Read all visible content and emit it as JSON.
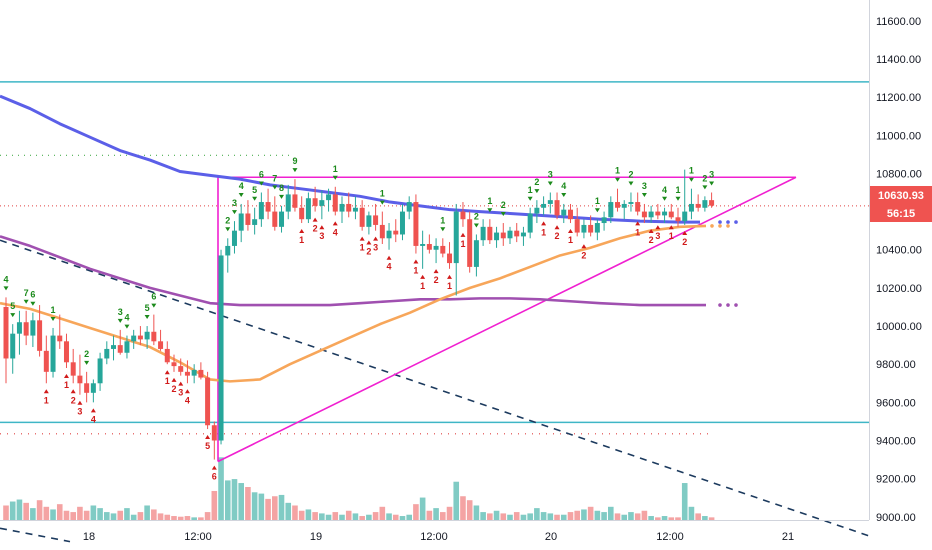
{
  "chart_data": {
    "type": "candlestick",
    "price_axis": {
      "ticks": [
        "11600.00",
        "11400.00",
        "11200.00",
        "11000.00",
        "10800.00",
        "10600.00",
        "10400.00",
        "10200.00",
        "10000.00",
        "9800.00",
        "9600.00",
        "9400.00",
        "9200.00",
        "9000.00"
      ],
      "range": [
        8870,
        11660
      ]
    },
    "time_axis": {
      "ticks": [
        "18",
        "12:00",
        "19",
        "12:00",
        "20",
        "12:00",
        "21"
      ]
    },
    "current_price_label": "10630.93",
    "countdown_label": "56:15",
    "colors": {
      "up": "#26a69a",
      "down": "#ef5350",
      "vol_up": "#80cbc4",
      "vol_down": "#f4a3a3",
      "ma_blue": "#5b5fe8",
      "ma_purple": "#a050b0",
      "ma_orange": "#f7a65a",
      "triangle": "#f020d0",
      "level_line": "#3fb6c6",
      "dashed_trend": "#1c3a5e",
      "price_marker": "#e04040"
    },
    "horizontal_levels": [
      11280,
      9495
    ],
    "candles": [
      {
        "o": 10100,
        "h": 10150,
        "l": 9700,
        "c": 9830
      },
      {
        "o": 9830,
        "h": 10010,
        "l": 9750,
        "c": 9960
      },
      {
        "o": 9960,
        "h": 10080,
        "l": 9850,
        "c": 10020
      },
      {
        "o": 10020,
        "h": 10080,
        "l": 9900,
        "c": 9950
      },
      {
        "o": 9950,
        "h": 10070,
        "l": 9890,
        "c": 10030
      },
      {
        "o": 10030,
        "h": 10110,
        "l": 9840,
        "c": 9870
      },
      {
        "o": 9870,
        "h": 9950,
        "l": 9700,
        "c": 9760
      },
      {
        "o": 9760,
        "h": 9990,
        "l": 9730,
        "c": 9950
      },
      {
        "o": 9950,
        "h": 10060,
        "l": 9880,
        "c": 9920
      },
      {
        "o": 9920,
        "h": 9960,
        "l": 9780,
        "c": 9810
      },
      {
        "o": 9810,
        "h": 9880,
        "l": 9700,
        "c": 9740
      },
      {
        "o": 9740,
        "h": 9850,
        "l": 9640,
        "c": 9700
      },
      {
        "o": 9700,
        "h": 9760,
        "l": 9600,
        "c": 9650
      },
      {
        "o": 9650,
        "h": 9720,
        "l": 9600,
        "c": 9700
      },
      {
        "o": 9700,
        "h": 9860,
        "l": 9660,
        "c": 9830
      },
      {
        "o": 9830,
        "h": 9920,
        "l": 9800,
        "c": 9880
      },
      {
        "o": 9880,
        "h": 9950,
        "l": 9820,
        "c": 9900
      },
      {
        "o": 9900,
        "h": 9980,
        "l": 9850,
        "c": 9860
      },
      {
        "o": 9860,
        "h": 9950,
        "l": 9830,
        "c": 9920
      },
      {
        "o": 9920,
        "h": 9980,
        "l": 9880,
        "c": 9950
      },
      {
        "o": 9950,
        "h": 10000,
        "l": 9900,
        "c": 9930
      },
      {
        "o": 9930,
        "h": 10000,
        "l": 9880,
        "c": 9970
      },
      {
        "o": 9970,
        "h": 10060,
        "l": 9900,
        "c": 9920
      },
      {
        "o": 9920,
        "h": 9980,
        "l": 9870,
        "c": 9880
      },
      {
        "o": 9880,
        "h": 9920,
        "l": 9800,
        "c": 9810
      },
      {
        "o": 9810,
        "h": 9850,
        "l": 9760,
        "c": 9790
      },
      {
        "o": 9790,
        "h": 9830,
        "l": 9740,
        "c": 9760
      },
      {
        "o": 9760,
        "h": 9820,
        "l": 9700,
        "c": 9740
      },
      {
        "o": 9740,
        "h": 9800,
        "l": 9700,
        "c": 9770
      },
      {
        "o": 9770,
        "h": 9810,
        "l": 9720,
        "c": 9730
      },
      {
        "o": 9730,
        "h": 9760,
        "l": 9460,
        "c": 9480
      },
      {
        "o": 9480,
        "h": 9500,
        "l": 9300,
        "c": 9400
      },
      {
        "o": 9400,
        "h": 10400,
        "l": 9380,
        "c": 10370
      },
      {
        "o": 10370,
        "h": 10460,
        "l": 10280,
        "c": 10420
      },
      {
        "o": 10420,
        "h": 10550,
        "l": 10380,
        "c": 10500
      },
      {
        "o": 10500,
        "h": 10640,
        "l": 10440,
        "c": 10590
      },
      {
        "o": 10590,
        "h": 10660,
        "l": 10500,
        "c": 10530
      },
      {
        "o": 10530,
        "h": 10620,
        "l": 10480,
        "c": 10560
      },
      {
        "o": 10560,
        "h": 10700,
        "l": 10520,
        "c": 10650
      },
      {
        "o": 10650,
        "h": 10720,
        "l": 10560,
        "c": 10600
      },
      {
        "o": 10600,
        "h": 10680,
        "l": 10500,
        "c": 10520
      },
      {
        "o": 10520,
        "h": 10630,
        "l": 10490,
        "c": 10600
      },
      {
        "o": 10600,
        "h": 10740,
        "l": 10560,
        "c": 10690
      },
      {
        "o": 10690,
        "h": 10770,
        "l": 10600,
        "c": 10620
      },
      {
        "o": 10620,
        "h": 10680,
        "l": 10540,
        "c": 10560
      },
      {
        "o": 10560,
        "h": 10700,
        "l": 10540,
        "c": 10670
      },
      {
        "o": 10670,
        "h": 10730,
        "l": 10600,
        "c": 10630
      },
      {
        "o": 10630,
        "h": 10710,
        "l": 10560,
        "c": 10660
      },
      {
        "o": 10660,
        "h": 10720,
        "l": 10600,
        "c": 10690
      },
      {
        "o": 10690,
        "h": 10730,
        "l": 10580,
        "c": 10600
      },
      {
        "o": 10600,
        "h": 10680,
        "l": 10540,
        "c": 10640
      },
      {
        "o": 10640,
        "h": 10700,
        "l": 10570,
        "c": 10600
      },
      {
        "o": 10600,
        "h": 10680,
        "l": 10560,
        "c": 10620
      },
      {
        "o": 10620,
        "h": 10660,
        "l": 10500,
        "c": 10520
      },
      {
        "o": 10520,
        "h": 10600,
        "l": 10480,
        "c": 10580
      },
      {
        "o": 10580,
        "h": 10640,
        "l": 10500,
        "c": 10530
      },
      {
        "o": 10530,
        "h": 10600,
        "l": 10430,
        "c": 10460
      },
      {
        "o": 10460,
        "h": 10540,
        "l": 10400,
        "c": 10500
      },
      {
        "o": 10500,
        "h": 10560,
        "l": 10440,
        "c": 10480
      },
      {
        "o": 10480,
        "h": 10640,
        "l": 10450,
        "c": 10600
      },
      {
        "o": 10600,
        "h": 10680,
        "l": 10560,
        "c": 10650
      },
      {
        "o": 10650,
        "h": 10690,
        "l": 10380,
        "c": 10420
      },
      {
        "o": 10420,
        "h": 10500,
        "l": 10300,
        "c": 10430
      },
      {
        "o": 10430,
        "h": 10480,
        "l": 10380,
        "c": 10400
      },
      {
        "o": 10400,
        "h": 10460,
        "l": 10330,
        "c": 10420
      },
      {
        "o": 10420,
        "h": 10460,
        "l": 10360,
        "c": 10380
      },
      {
        "o": 10380,
        "h": 10440,
        "l": 10300,
        "c": 10330
      },
      {
        "o": 10330,
        "h": 10640,
        "l": 10160,
        "c": 10600
      },
      {
        "o": 10600,
        "h": 10650,
        "l": 10520,
        "c": 10560
      },
      {
        "o": 10560,
        "h": 10600,
        "l": 10280,
        "c": 10310
      },
      {
        "o": 10310,
        "h": 10480,
        "l": 10260,
        "c": 10450
      },
      {
        "o": 10450,
        "h": 10560,
        "l": 10420,
        "c": 10520
      },
      {
        "o": 10520,
        "h": 10560,
        "l": 10430,
        "c": 10450
      },
      {
        "o": 10450,
        "h": 10520,
        "l": 10410,
        "c": 10490
      },
      {
        "o": 10490,
        "h": 10540,
        "l": 10420,
        "c": 10460
      },
      {
        "o": 10460,
        "h": 10520,
        "l": 10430,
        "c": 10500
      },
      {
        "o": 10500,
        "h": 10540,
        "l": 10440,
        "c": 10470
      },
      {
        "o": 10470,
        "h": 10520,
        "l": 10420,
        "c": 10490
      },
      {
        "o": 10490,
        "h": 10620,
        "l": 10460,
        "c": 10590
      },
      {
        "o": 10590,
        "h": 10660,
        "l": 10540,
        "c": 10620
      },
      {
        "o": 10620,
        "h": 10680,
        "l": 10580,
        "c": 10640
      },
      {
        "o": 10640,
        "h": 10700,
        "l": 10590,
        "c": 10660
      },
      {
        "o": 10660,
        "h": 10700,
        "l": 10560,
        "c": 10580
      },
      {
        "o": 10580,
        "h": 10640,
        "l": 10540,
        "c": 10610
      },
      {
        "o": 10610,
        "h": 10640,
        "l": 10540,
        "c": 10560
      },
      {
        "o": 10560,
        "h": 10620,
        "l": 10470,
        "c": 10490
      },
      {
        "o": 10490,
        "h": 10560,
        "l": 10460,
        "c": 10530
      },
      {
        "o": 10530,
        "h": 10580,
        "l": 10470,
        "c": 10490
      },
      {
        "o": 10490,
        "h": 10560,
        "l": 10450,
        "c": 10540
      },
      {
        "o": 10540,
        "h": 10600,
        "l": 10500,
        "c": 10570
      },
      {
        "o": 10570,
        "h": 10680,
        "l": 10540,
        "c": 10650
      },
      {
        "o": 10650,
        "h": 10720,
        "l": 10600,
        "c": 10620
      },
      {
        "o": 10620,
        "h": 10660,
        "l": 10560,
        "c": 10640
      },
      {
        "o": 10640,
        "h": 10700,
        "l": 10600,
        "c": 10650
      },
      {
        "o": 10650,
        "h": 10700,
        "l": 10580,
        "c": 10600
      },
      {
        "o": 10600,
        "h": 10640,
        "l": 10540,
        "c": 10570
      },
      {
        "o": 10570,
        "h": 10630,
        "l": 10540,
        "c": 10600
      },
      {
        "o": 10600,
        "h": 10640,
        "l": 10560,
        "c": 10580
      },
      {
        "o": 10580,
        "h": 10620,
        "l": 10540,
        "c": 10600
      },
      {
        "o": 10600,
        "h": 10640,
        "l": 10560,
        "c": 10570
      },
      {
        "o": 10570,
        "h": 10620,
        "l": 10520,
        "c": 10550
      },
      {
        "o": 10550,
        "h": 10820,
        "l": 10530,
        "c": 10600
      },
      {
        "o": 10600,
        "h": 10720,
        "l": 10560,
        "c": 10640
      },
      {
        "o": 10640,
        "h": 10690,
        "l": 10600,
        "c": 10620
      },
      {
        "o": 10620,
        "h": 10680,
        "l": 10600,
        "c": 10660
      },
      {
        "o": 10660,
        "h": 10700,
        "l": 10620,
        "c": 10631
      }
    ],
    "volumes": [
      0.22,
      0.28,
      0.31,
      0.26,
      0.18,
      0.3,
      0.2,
      0.16,
      0.24,
      0.14,
      0.12,
      0.2,
      0.14,
      0.22,
      0.18,
      0.12,
      0.1,
      0.14,
      0.18,
      0.08,
      0.12,
      0.22,
      0.16,
      0.1,
      0.08,
      0.06,
      0.05,
      0.06,
      0.04,
      0.04,
      0.12,
      0.44,
      0.95,
      0.6,
      0.62,
      0.56,
      0.5,
      0.42,
      0.4,
      0.32,
      0.36,
      0.38,
      0.26,
      0.22,
      0.14,
      0.16,
      0.12,
      0.1,
      0.08,
      0.12,
      0.08,
      0.14,
      0.1,
      0.06,
      0.08,
      0.12,
      0.2,
      0.1,
      0.08,
      0.06,
      0.08,
      0.24,
      0.34,
      0.14,
      0.18,
      0.12,
      0.2,
      0.58,
      0.36,
      0.3,
      0.22,
      0.12,
      0.1,
      0.14,
      0.1,
      0.08,
      0.12,
      0.08,
      0.1,
      0.18,
      0.12,
      0.1,
      0.08,
      0.08,
      0.12,
      0.14,
      0.16,
      0.2,
      0.14,
      0.12,
      0.2,
      0.1,
      0.08,
      0.12,
      0.1,
      0.14,
      0.06,
      0.04,
      0.06,
      0.04,
      0.04,
      0.56,
      0.2,
      0.1,
      0.06,
      0.04
    ],
    "ma_blue": [
      [
        0,
        11205
      ],
      [
        30,
        11140
      ],
      [
        60,
        11060
      ],
      [
        90,
        10990
      ],
      [
        120,
        10920
      ],
      [
        150,
        10870
      ],
      [
        180,
        10810
      ],
      [
        210,
        10790
      ],
      [
        240,
        10770
      ],
      [
        270,
        10740
      ],
      [
        300,
        10720
      ],
      [
        330,
        10700
      ],
      [
        360,
        10680
      ],
      [
        390,
        10650
      ],
      [
        420,
        10630
      ],
      [
        450,
        10610
      ],
      [
        480,
        10600
      ],
      [
        510,
        10590
      ],
      [
        540,
        10580
      ],
      [
        570,
        10570
      ],
      [
        600,
        10560
      ],
      [
        640,
        10550
      ],
      [
        680,
        10545
      ],
      [
        700,
        10545
      ]
    ],
    "ma_purple": [
      [
        0,
        10470
      ],
      [
        30,
        10420
      ],
      [
        60,
        10360
      ],
      [
        90,
        10300
      ],
      [
        120,
        10250
      ],
      [
        150,
        10200
      ],
      [
        180,
        10160
      ],
      [
        210,
        10120
      ],
      [
        240,
        10110
      ],
      [
        270,
        10110
      ],
      [
        300,
        10110
      ],
      [
        330,
        10110
      ],
      [
        360,
        10120
      ],
      [
        390,
        10130
      ],
      [
        420,
        10140
      ],
      [
        450,
        10140
      ],
      [
        480,
        10145
      ],
      [
        510,
        10145
      ],
      [
        540,
        10140
      ],
      [
        570,
        10130
      ],
      [
        600,
        10120
      ],
      [
        640,
        10110
      ],
      [
        680,
        10110
      ],
      [
        706,
        10110
      ]
    ],
    "ma_orange": [
      [
        0,
        10120
      ],
      [
        30,
        10090
      ],
      [
        60,
        10040
      ],
      [
        90,
        9990
      ],
      [
        120,
        9940
      ],
      [
        150,
        9890
      ],
      [
        180,
        9810
      ],
      [
        210,
        9720
      ],
      [
        230,
        9710
      ],
      [
        260,
        9720
      ],
      [
        290,
        9800
      ],
      [
        320,
        9870
      ],
      [
        350,
        9940
      ],
      [
        380,
        10010
      ],
      [
        410,
        10070
      ],
      [
        440,
        10140
      ],
      [
        470,
        10200
      ],
      [
        500,
        10250
      ],
      [
        530,
        10310
      ],
      [
        560,
        10370
      ],
      [
        590,
        10410
      ],
      [
        620,
        10460
      ],
      [
        650,
        10500
      ],
      [
        680,
        10520
      ],
      [
        706,
        10525
      ]
    ],
    "triangle": {
      "top_y": 10780,
      "apex_x": 796,
      "start_x": 218,
      "bottom_y": 9290
    },
    "td_labels": {
      "green": [
        {
          "i": 0,
          "t": "4"
        },
        {
          "i": 1,
          "t": "5"
        },
        {
          "i": 3,
          "t": "7"
        },
        {
          "i": 4,
          "t": "6"
        },
        {
          "i": 7,
          "t": "1"
        },
        {
          "i": 12,
          "t": "2"
        },
        {
          "i": 17,
          "t": "3"
        },
        {
          "i": 18,
          "t": "4"
        },
        {
          "i": 21,
          "t": "5"
        },
        {
          "i": 22,
          "t": "6"
        },
        {
          "i": 33,
          "t": "2"
        },
        {
          "i": 34,
          "t": "3"
        },
        {
          "i": 35,
          "t": "4"
        },
        {
          "i": 37,
          "t": "5"
        },
        {
          "i": 38,
          "t": "6"
        },
        {
          "i": 40,
          "t": "7"
        },
        {
          "i": 41,
          "t": "8"
        },
        {
          "i": 43,
          "t": "9"
        },
        {
          "i": 49,
          "t": "1"
        },
        {
          "i": 56,
          "t": "1"
        },
        {
          "i": 65,
          "t": "1"
        },
        {
          "i": 70,
          "t": "2"
        },
        {
          "i": 72,
          "t": "1"
        },
        {
          "i": 74,
          "t": "2"
        },
        {
          "i": 78,
          "t": "1"
        },
        {
          "i": 79,
          "t": "2"
        },
        {
          "i": 81,
          "t": "3"
        },
        {
          "i": 83,
          "t": "4"
        },
        {
          "i": 88,
          "t": "1"
        },
        {
          "i": 91,
          "t": "1"
        },
        {
          "i": 93,
          "t": "2"
        },
        {
          "i": 95,
          "t": "3"
        },
        {
          "i": 98,
          "t": "4"
        },
        {
          "i": 100,
          "t": "1"
        },
        {
          "i": 102,
          "t": "1"
        },
        {
          "i": 104,
          "t": "2"
        },
        {
          "i": 105,
          "t": "3"
        }
      ],
      "red": [
        {
          "i": 6,
          "t": "1"
        },
        {
          "i": 9,
          "t": "1"
        },
        {
          "i": 10,
          "t": "2"
        },
        {
          "i": 11,
          "t": "3"
        },
        {
          "i": 13,
          "t": "4"
        },
        {
          "i": 24,
          "t": "1"
        },
        {
          "i": 25,
          "t": "2"
        },
        {
          "i": 26,
          "t": "3"
        },
        {
          "i": 27,
          "t": "4"
        },
        {
          "i": 30,
          "t": "5"
        },
        {
          "i": 31,
          "t": "6"
        },
        {
          "i": 44,
          "t": "1"
        },
        {
          "i": 46,
          "t": "2"
        },
        {
          "i": 47,
          "t": "3"
        },
        {
          "i": 49,
          "t": "4"
        },
        {
          "i": 53,
          "t": "1"
        },
        {
          "i": 54,
          "t": "2"
        },
        {
          "i": 55,
          "t": "3"
        },
        {
          "i": 57,
          "t": "4"
        },
        {
          "i": 61,
          "t": "1"
        },
        {
          "i": 62,
          "t": "1"
        },
        {
          "i": 64,
          "t": "2"
        },
        {
          "i": 66,
          "t": "1"
        },
        {
          "i": 68,
          "t": "1"
        },
        {
          "i": 80,
          "t": "1"
        },
        {
          "i": 82,
          "t": "2"
        },
        {
          "i": 84,
          "t": "1"
        },
        {
          "i": 86,
          "t": "2"
        },
        {
          "i": 94,
          "t": "1"
        },
        {
          "i": 96,
          "t": "2"
        },
        {
          "i": 97,
          "t": "3"
        },
        {
          "i": 99,
          "t": "1"
        },
        {
          "i": 101,
          "t": "2"
        }
      ]
    }
  }
}
